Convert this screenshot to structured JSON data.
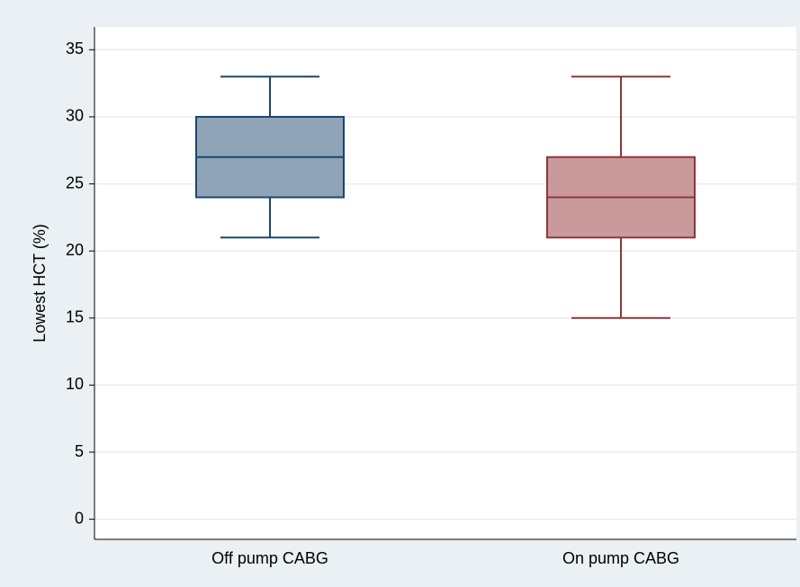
{
  "chart_data": {
    "type": "box",
    "y_label": "Lowest HCT (%)",
    "categories": [
      "Off pump CABG",
      "On pump CABG"
    ],
    "boxes": [
      {
        "whislo": 21,
        "q1": 24,
        "med": 27,
        "q3": 30,
        "whishi": 33,
        "color": "#1a476f",
        "fill": "#90a4b8"
      },
      {
        "whislo": 15,
        "q1": 21,
        "med": 24,
        "q3": 27,
        "whishi": 33,
        "color": "#90353b",
        "fill": "#c99a9c"
      }
    ],
    "ylim": [
      -1.5,
      36.7
    ],
    "yticks": [
      0,
      5,
      10,
      15,
      20,
      25,
      30,
      35
    ],
    "grid": true
  }
}
